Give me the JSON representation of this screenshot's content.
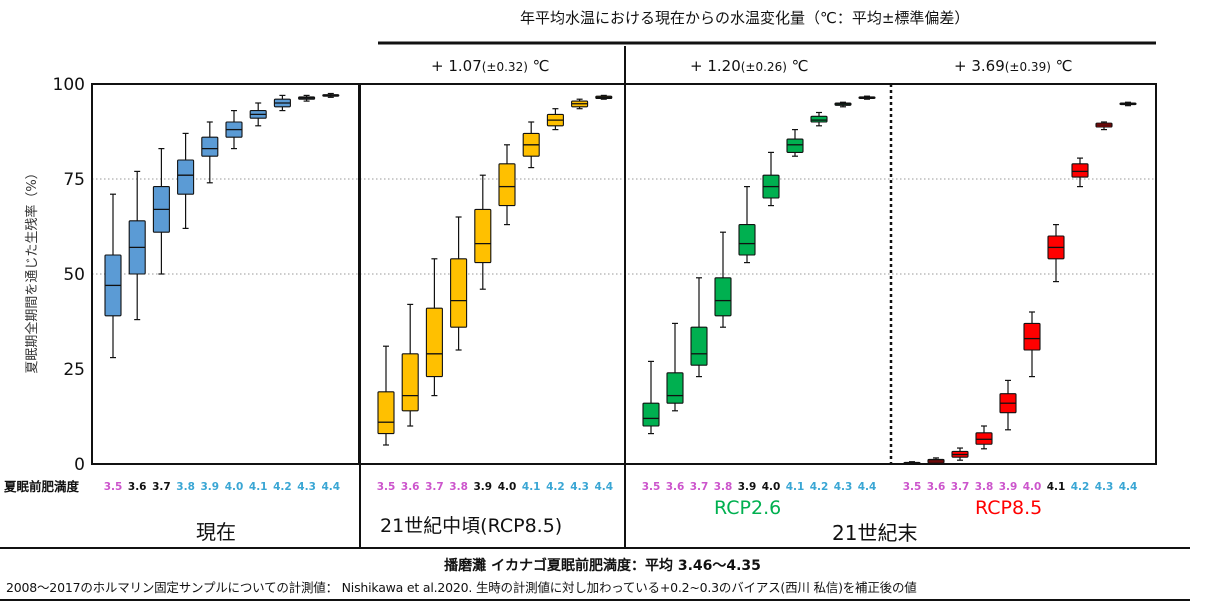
{
  "header": {
    "title": "年平均水温における現在からの水温変化量（℃：平均±標準偏差）",
    "mid_century_delta": {
      "main": "+ 1.07",
      "sd": "(±0.32)",
      "unit": " ℃"
    },
    "rcp26_delta": {
      "main": "+ 1.20",
      "sd": "(±0.26)",
      "unit": " ℃"
    },
    "rcp85_delta": {
      "main": "+ 3.69",
      "sd": "(±0.39)",
      "unit": " ℃"
    }
  },
  "xaxis_title": "夏眠前肥満度",
  "panel_labels": {
    "present": "現在",
    "mid_century": "21世紀中頃(RCP8.5)",
    "rcp26": "RCP2.6",
    "end_century": "21世紀末",
    "rcp85": "RCP8.5"
  },
  "footer": {
    "line1": "播磨灘 イカナゴ夏眠前肥満度：平均 3.46～4.35",
    "line2": "2008～2017のホルマリン固定サンプルについての計測値： Nishikawa et al.2020.  生時の計測値に対し加わっている+0.2~0.3のバイアス(西川  私信)を補正後の値"
  },
  "colors": {
    "present": "#5b9bd5",
    "mid_century": "#ffc000",
    "rcp26": "#00b050",
    "rcp85": "#ff0000",
    "tick_magenta": "#cc55cc",
    "tick_black": "#111111",
    "tick_cyan": "#3aa6d4",
    "rcp26_label": "#00b050",
    "rcp85_label": "#ff0000"
  },
  "chart_data": {
    "type": "box",
    "ylabel": "夏眠期全期間を通じた生残率（%）",
    "ylim": [
      0,
      100
    ],
    "yticks": [
      0,
      25,
      50,
      75,
      100
    ],
    "grid": "dotted horizontal at 50 and 75",
    "categories": [
      "3.5",
      "3.6",
      "3.7",
      "3.8",
      "3.9",
      "4.0",
      "4.1",
      "4.2",
      "4.3",
      "4.4"
    ],
    "panels": [
      {
        "name": "現在",
        "color": "#5b9bd5",
        "tick_colors": [
          "magenta",
          "black",
          "black",
          "cyan",
          "cyan",
          "cyan",
          "cyan",
          "cyan",
          "cyan",
          "cyan"
        ],
        "boxes": [
          {
            "min": 28,
            "q1": 39,
            "median": 47,
            "q3": 55,
            "max": 71
          },
          {
            "min": 38,
            "q1": 50,
            "median": 57,
            "q3": 64,
            "max": 77
          },
          {
            "min": 50,
            "q1": 61,
            "median": 67,
            "q3": 73,
            "max": 83
          },
          {
            "min": 62,
            "q1": 71,
            "median": 76,
            "q3": 80,
            "max": 87
          },
          {
            "min": 74,
            "q1": 81,
            "median": 83,
            "q3": 86,
            "max": 90
          },
          {
            "min": 83,
            "q1": 86,
            "median": 88,
            "q3": 90,
            "max": 93
          },
          {
            "min": 89,
            "q1": 91,
            "median": 92,
            "q3": 93,
            "max": 95
          },
          {
            "min": 93,
            "q1": 94,
            "median": 95,
            "q3": 96,
            "max": 97
          },
          {
            "min": 95.5,
            "q1": 96,
            "median": 96.3,
            "q3": 96.6,
            "max": 97
          },
          {
            "min": 96.5,
            "q1": 96.8,
            "median": 97,
            "q3": 97.2,
            "max": 97.5
          }
        ]
      },
      {
        "name": "21世紀中頃(RCP8.5)",
        "color": "#ffc000",
        "tick_colors": [
          "magenta",
          "magenta",
          "magenta",
          "magenta",
          "black",
          "black",
          "cyan",
          "cyan",
          "cyan",
          "cyan"
        ],
        "boxes": [
          {
            "min": 5,
            "q1": 8,
            "median": 11,
            "q3": 19,
            "max": 31
          },
          {
            "min": 10,
            "q1": 14,
            "median": 18,
            "q3": 29,
            "max": 42
          },
          {
            "min": 18,
            "q1": 23,
            "median": 29,
            "q3": 41,
            "max": 54
          },
          {
            "min": 30,
            "q1": 36,
            "median": 43,
            "q3": 54,
            "max": 65
          },
          {
            "min": 46,
            "q1": 53,
            "median": 58,
            "q3": 67,
            "max": 76
          },
          {
            "min": 63,
            "q1": 68,
            "median": 73,
            "q3": 79,
            "max": 84
          },
          {
            "min": 78,
            "q1": 81,
            "median": 84,
            "q3": 87,
            "max": 90
          },
          {
            "min": 88,
            "q1": 89,
            "median": 90.5,
            "q3": 92,
            "max": 93.5
          },
          {
            "min": 93.5,
            "q1": 94,
            "median": 94.8,
            "q3": 95.5,
            "max": 96
          },
          {
            "min": 96,
            "q1": 96.2,
            "median": 96.5,
            "q3": 96.8,
            "max": 97
          }
        ]
      },
      {
        "name": "RCP2.6",
        "color": "#00b050",
        "tick_colors": [
          "magenta",
          "magenta",
          "magenta",
          "magenta",
          "black",
          "black",
          "cyan",
          "cyan",
          "cyan",
          "cyan"
        ],
        "boxes": [
          {
            "min": 8,
            "q1": 10,
            "median": 12,
            "q3": 16,
            "max": 27
          },
          {
            "min": 14,
            "q1": 16,
            "median": 18,
            "q3": 24,
            "max": 37
          },
          {
            "min": 23,
            "q1": 26,
            "median": 29,
            "q3": 36,
            "max": 49
          },
          {
            "min": 36,
            "q1": 39,
            "median": 43,
            "q3": 49,
            "max": 61
          },
          {
            "min": 53,
            "q1": 55,
            "median": 58,
            "q3": 63,
            "max": 73
          },
          {
            "min": 68,
            "q1": 70,
            "median": 73,
            "q3": 76,
            "max": 82
          },
          {
            "min": 81,
            "q1": 82,
            "median": 84,
            "q3": 85.5,
            "max": 88
          },
          {
            "min": 89,
            "q1": 90,
            "median": 90.5,
            "q3": 91.5,
            "max": 92.5
          },
          {
            "min": 94,
            "q1": 94.4,
            "median": 94.7,
            "q3": 95,
            "max": 95.2
          },
          {
            "min": 96,
            "q1": 96.2,
            "median": 96.4,
            "q3": 96.6,
            "max": 96.8
          }
        ]
      },
      {
        "name": "RCP8.5",
        "color": "#ff0000",
        "tick_colors": [
          "magenta",
          "magenta",
          "magenta",
          "magenta",
          "magenta",
          "magenta",
          "black",
          "cyan",
          "cyan",
          "cyan"
        ],
        "boxes": [
          {
            "min": 0,
            "q1": 0,
            "median": 0.2,
            "q3": 0.4,
            "max": 0.6
          },
          {
            "min": 0,
            "q1": 0.3,
            "median": 0.8,
            "q3": 1.2,
            "max": 1.6
          },
          {
            "min": 1,
            "q1": 1.8,
            "median": 2.5,
            "q3": 3.3,
            "max": 4.2
          },
          {
            "min": 4,
            "q1": 5.2,
            "median": 6.5,
            "q3": 8.2,
            "max": 10
          },
          {
            "min": 9,
            "q1": 13.5,
            "median": 16,
            "q3": 18.5,
            "max": 22
          },
          {
            "min": 23,
            "q1": 30,
            "median": 33,
            "q3": 37,
            "max": 40
          },
          {
            "min": 48,
            "q1": 54,
            "median": 57,
            "q3": 60,
            "max": 63
          },
          {
            "min": 73,
            "q1": 75.5,
            "median": 77,
            "q3": 79,
            "max": 80.5
          },
          {
            "min": 88,
            "q1": 88.7,
            "median": 89.2,
            "q3": 89.7,
            "max": 90
          },
          {
            "min": 94.3,
            "q1": 94.6,
            "median": 94.8,
            "q3": 95,
            "max": 95.2
          }
        ]
      }
    ]
  }
}
